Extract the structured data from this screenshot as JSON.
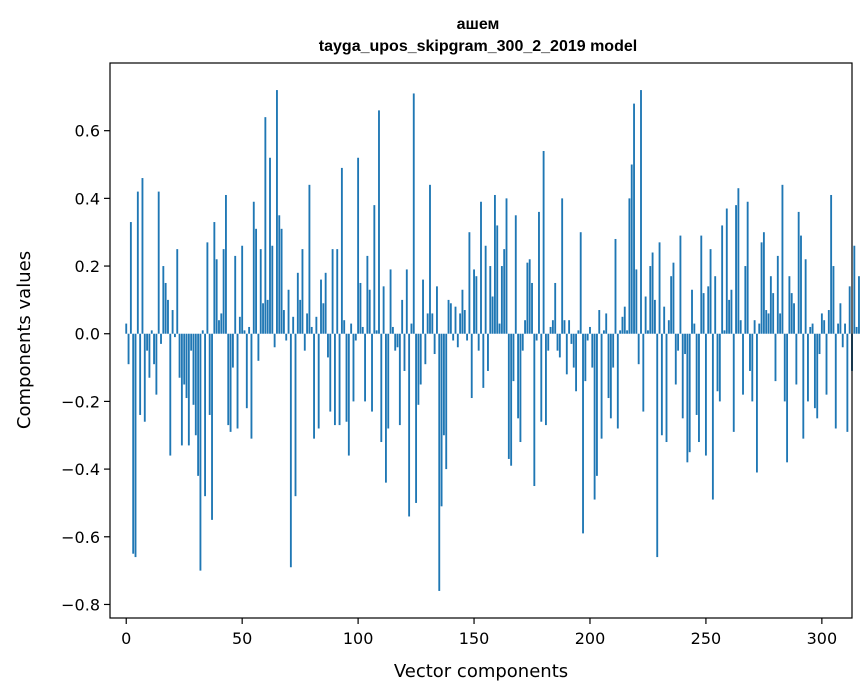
{
  "chart_data": {
    "type": "bar",
    "title": "ашем",
    "subtitle": "tayga_upos_skipgram_300_2_2019 model",
    "xlabel": "Vector components",
    "ylabel": "Components values",
    "xlim": [
      -7,
      313
    ],
    "ylim": [
      -0.84,
      0.8
    ],
    "xticks": [
      0,
      50,
      100,
      150,
      200,
      250,
      300
    ],
    "yticks": [
      -0.8,
      -0.6,
      -0.4,
      -0.2,
      0.0,
      0.2,
      0.4,
      0.6
    ],
    "xtick_labels": [
      "0",
      "50",
      "100",
      "150",
      "200",
      "250",
      "300"
    ],
    "ytick_labels": [
      "−0.8",
      "−0.6",
      "−0.4",
      "−0.2",
      "0.0",
      "0.2",
      "0.4",
      "0.6"
    ],
    "color": "#1f77b4",
    "values": [
      0.03,
      -0.09,
      0.33,
      -0.65,
      -0.66,
      0.42,
      -0.24,
      0.46,
      -0.26,
      -0.05,
      -0.13,
      0.01,
      -0.09,
      -0.18,
      0.42,
      -0.03,
      0.2,
      0.15,
      0.1,
      -0.36,
      0.07,
      -0.01,
      0.25,
      -0.13,
      -0.33,
      -0.15,
      -0.19,
      -0.33,
      -0.05,
      -0.21,
      -0.3,
      -0.42,
      -0.7,
      0.01,
      -0.48,
      0.27,
      -0.24,
      -0.55,
      0.33,
      0.22,
      0.04,
      0.06,
      0.25,
      0.41,
      -0.27,
      -0.29,
      -0.1,
      0.23,
      -0.28,
      0.05,
      0.26,
      0.01,
      -0.22,
      0.02,
      -0.31,
      0.39,
      0.31,
      -0.08,
      0.25,
      0.09,
      0.64,
      0.1,
      0.52,
      0.26,
      -0.04,
      0.72,
      0.35,
      0.31,
      0.07,
      -0.02,
      0.13,
      -0.69,
      0.05,
      -0.48,
      0.18,
      0.1,
      0.25,
      -0.05,
      0.06,
      0.44,
      0.02,
      -0.31,
      0.05,
      -0.28,
      0.16,
      0.09,
      0.18,
      -0.07,
      -0.23,
      0.25,
      -0.27,
      0.25,
      -0.27,
      0.49,
      0.04,
      -0.26,
      -0.36,
      0.03,
      -0.2,
      -0.02,
      0.52,
      0.15,
      0.02,
      -0.2,
      0.23,
      0.13,
      -0.23,
      0.38,
      0.01,
      0.66,
      -0.32,
      0.14,
      -0.44,
      -0.28,
      0.19,
      0.02,
      -0.05,
      -0.04,
      -0.27,
      0.1,
      -0.11,
      0.19,
      -0.54,
      0.03,
      0.71,
      -0.5,
      -0.21,
      -0.15,
      0.16,
      -0.09,
      0.06,
      0.44,
      0.06,
      -0.06,
      0.14,
      -0.76,
      -0.51,
      -0.3,
      -0.4,
      0.1,
      0.09,
      -0.02,
      0.08,
      -0.04,
      0.06,
      0.13,
      0.07,
      -0.02,
      0.3,
      -0.19,
      0.19,
      0.17,
      -0.05,
      0.39,
      -0.16,
      0.26,
      -0.11,
      0.2,
      0.11,
      0.41,
      0.32,
      0.03,
      0.2,
      0.25,
      0.4,
      -0.37,
      -0.39,
      -0.14,
      0.35,
      -0.25,
      -0.32,
      -0.05,
      0.04,
      0.21,
      0.22,
      0.15,
      -0.45,
      -0.02,
      0.36,
      -0.26,
      0.54,
      -0.27,
      -0.05,
      0.02,
      0.04,
      0.15,
      -0.05,
      -0.07,
      0.4,
      0.04,
      -0.12,
      0.04,
      -0.03,
      -0.1,
      -0.17,
      0.01,
      0.3,
      -0.59,
      -0.14,
      -0.02,
      0.02,
      -0.1,
      -0.49,
      -0.42,
      0.07,
      -0.31,
      0.01,
      0.06,
      -0.19,
      -0.25,
      -0.1,
      0.28,
      -0.28,
      0.01,
      0.05,
      0.08,
      0.01,
      0.4,
      0.5,
      0.68,
      0.19,
      -0.09,
      0.72,
      -0.23,
      0.11,
      0.01,
      0.2,
      0.24,
      0.1,
      -0.66,
      0.27,
      -0.3,
      0.08,
      -0.32,
      0.04,
      0.17,
      0.21,
      -0.15,
      -0.05,
      0.29,
      -0.25,
      -0.06,
      -0.38,
      -0.35,
      0.13,
      0.03,
      -0.24,
      -0.32,
      0.29,
      0.12,
      -0.36,
      0.14,
      0.25,
      -0.49,
      0.17,
      -0.17,
      -0.2,
      0.32,
      0.01,
      0.37,
      0.1,
      0.13,
      -0.29,
      0.38,
      0.43,
      0.04,
      -0.18,
      0.2,
      0.39,
      -0.11,
      -0.2,
      0.04,
      -0.41,
      0.03,
      0.27,
      0.3,
      0.07,
      0.06,
      0.17,
      0.12,
      -0.14,
      0.23,
      0.06,
      0.44,
      -0.2,
      -0.38,
      0.17,
      0.12,
      0.09,
      -0.15,
      0.36,
      0.29,
      -0.31,
      0.22,
      -0.2,
      0.02,
      0.03,
      -0.22,
      -0.25,
      -0.06,
      0.06,
      0.04,
      -0.18,
      0.07,
      0.41,
      0.2,
      -0.28,
      0.03,
      0.09,
      -0.04,
      0.03,
      -0.29,
      0.14,
      -0.11,
      0.26,
      0.02,
      0.17
    ]
  }
}
